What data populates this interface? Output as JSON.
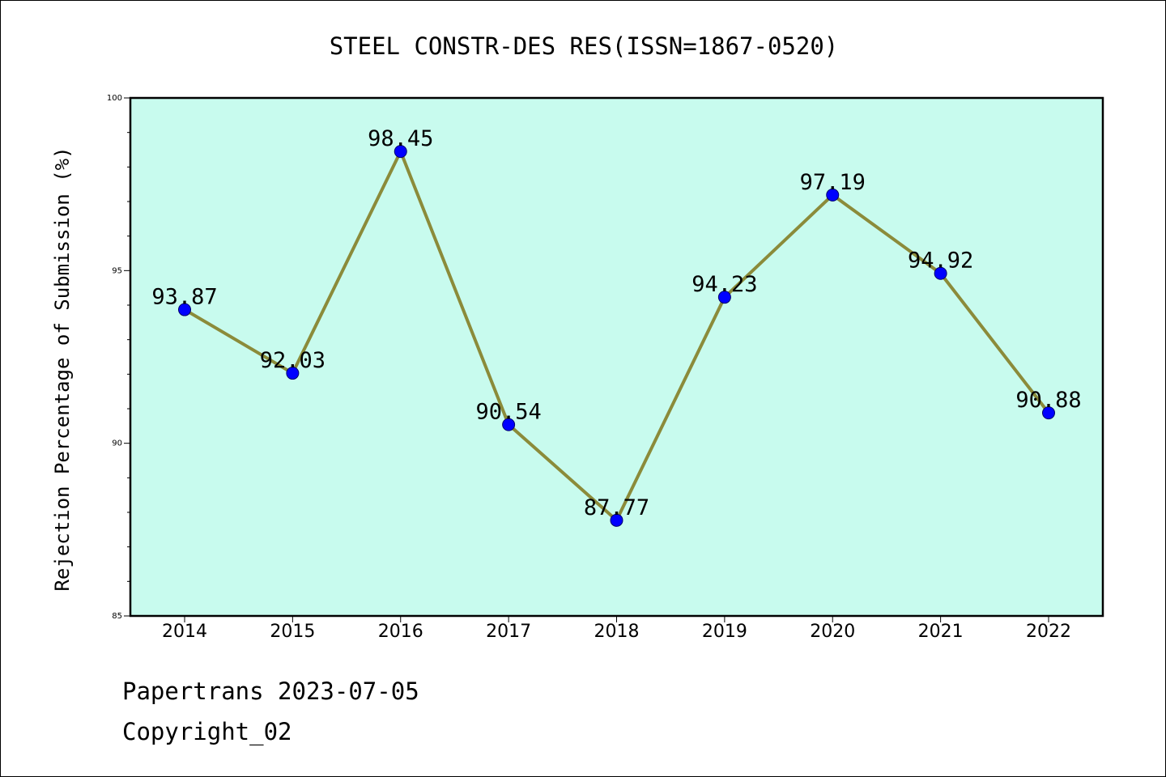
{
  "chart_data": {
    "type": "line",
    "title": "STEEL CONSTR-DES RES(ISSN=1867-0520)",
    "xlabel": "",
    "ylabel": "Rejection Percentage of Submission (%)",
    "categories": [
      "2014",
      "2015",
      "2016",
      "2017",
      "2018",
      "2019",
      "2020",
      "2021",
      "2022"
    ],
    "values": [
      93.87,
      92.03,
      98.45,
      90.54,
      87.77,
      94.23,
      97.19,
      94.92,
      90.88
    ],
    "data_labels": [
      "93.87",
      "92.03",
      "98.45",
      "90.54",
      "87.77",
      "94.23",
      "97.19",
      "94.92",
      "90.88"
    ],
    "ylim": [
      85,
      100
    ],
    "yticks": [
      "85",
      "90",
      "95",
      "100"
    ],
    "grid": false,
    "colors": {
      "plot_background": "#c8fbee",
      "line": "#8b8b3a",
      "marker": "#0000ff"
    }
  },
  "footer": {
    "line1": "Papertrans 2023-07-05",
    "line2": "Copyright_02"
  }
}
